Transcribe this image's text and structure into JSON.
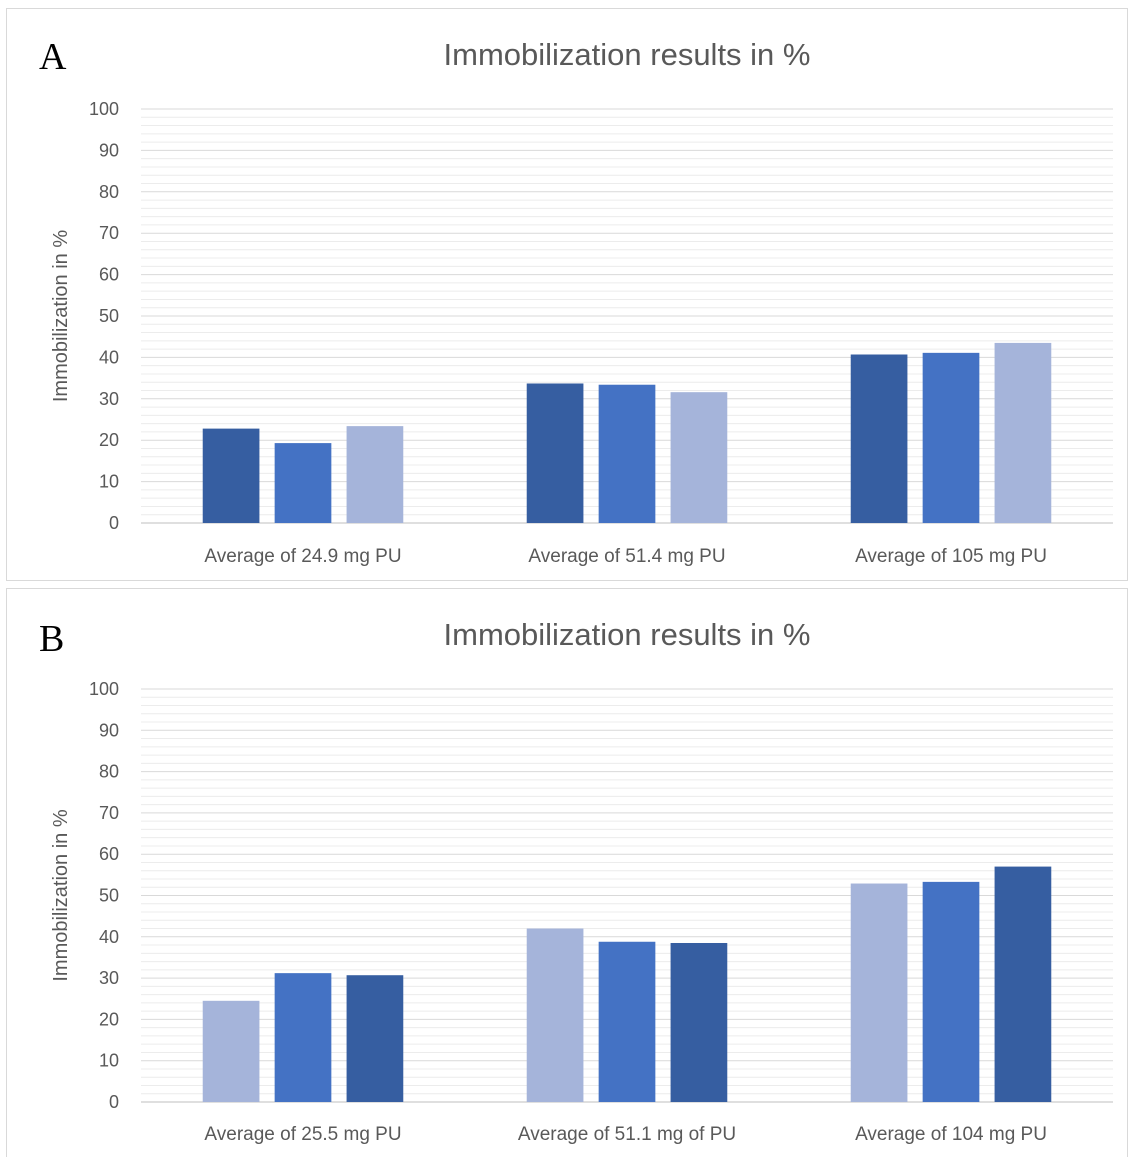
{
  "colors": {
    "dark": "#365ea1",
    "mid": "#4472c4",
    "light": "#a5b4da",
    "text": "#595959",
    "grid": "#d9d9d9",
    "minorgrid": "#ececec"
  },
  "chart_data": [
    {
      "panel_label": "A",
      "type": "bar",
      "title": "Immobilization results in %",
      "ylabel": "Immobilization in %",
      "xlabel": "",
      "ylim": [
        0,
        100
      ],
      "yticks": [
        0,
        10,
        20,
        30,
        40,
        50,
        60,
        70,
        80,
        90,
        100
      ],
      "grid": true,
      "legend": "none",
      "categories": [
        "Average of 24.9 mg PU",
        "Average of 51.4 mg PU",
        "Average of 105 mg PU"
      ],
      "series": [
        {
          "values": [
            22.8,
            33.7,
            40.7
          ],
          "color": "#365ea1"
        },
        {
          "values": [
            19.3,
            33.4,
            41.1
          ],
          "color": "#4472c4"
        },
        {
          "values": [
            23.4,
            31.6,
            43.5
          ],
          "color": "#a5b4da"
        }
      ]
    },
    {
      "panel_label": "B",
      "type": "bar",
      "title": "Immobilization results in %",
      "ylabel": "Immobilization in %",
      "xlabel": "",
      "ylim": [
        0,
        100
      ],
      "yticks": [
        0,
        10,
        20,
        30,
        40,
        50,
        60,
        70,
        80,
        90,
        100
      ],
      "grid": true,
      "legend": "none",
      "categories": [
        "Average of 25.5 mg PU",
        "Average of 51.1 mg of PU",
        "Average of 104 mg PU"
      ],
      "series": [
        {
          "values": [
            24.5,
            42.0,
            52.9
          ],
          "color": "#a5b4da"
        },
        {
          "values": [
            31.2,
            38.8,
            53.3
          ],
          "color": "#4472c4"
        },
        {
          "values": [
            30.7,
            38.5,
            57.0
          ],
          "color": "#365ea1"
        }
      ]
    }
  ]
}
